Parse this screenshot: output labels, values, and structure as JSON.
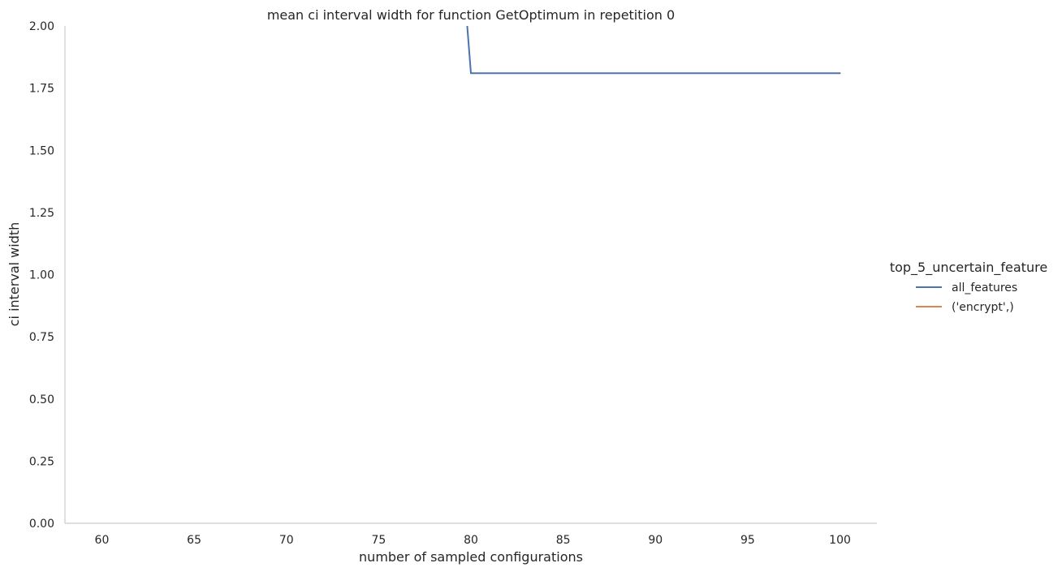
{
  "chart_data": {
    "type": "line",
    "title": "mean ci interval width for function GetOptimum in repetition 0",
    "xlabel": "number of sampled configurations",
    "ylabel": "ci interval width",
    "xlim": [
      58,
      102
    ],
    "ylim": [
      0,
      2.0
    ],
    "xticks": [
      60,
      65,
      70,
      75,
      80,
      85,
      90,
      95,
      100
    ],
    "yticks": [
      0.0,
      0.25,
      0.5,
      0.75,
      1.0,
      1.25,
      1.5,
      1.75,
      2.0
    ],
    "ytick_labels": [
      "0.00",
      "0.25",
      "0.50",
      "0.75",
      "1.00",
      "1.25",
      "1.50",
      "1.75",
      "2.00"
    ],
    "grid": false,
    "legend": {
      "title": "top_5_uncertain_feature",
      "placement": "right"
    },
    "series": [
      {
        "name": "all_features",
        "color": "#4c72b0",
        "x": [
          79.8,
          80,
          100
        ],
        "y": [
          2.0,
          1.81,
          1.81
        ]
      },
      {
        "name": "('encrypt',)",
        "color": "#dd8452",
        "x": [],
        "y": []
      }
    ]
  }
}
